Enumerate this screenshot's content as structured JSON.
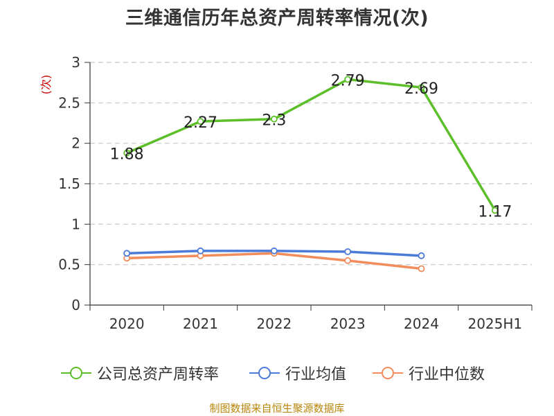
{
  "title": "三维通信历年总资产周转率情况(次)",
  "source": "制图数据来自恒生聚源数据库",
  "chart_data": {
    "type": "line",
    "title": "三维通信历年总资产周转率情况(次)",
    "ylabel": "(次)",
    "xlabel": "",
    "categories": [
      "2020",
      "2021",
      "2022",
      "2023",
      "2024",
      "2025H1"
    ],
    "ylim": [
      0,
      3
    ],
    "yticks": [
      "0",
      "0.5",
      "1",
      "1.5",
      "2",
      "2.5",
      "3"
    ],
    "grid": true,
    "legend_position": "bottom",
    "series": [
      {
        "name": "公司总资产周转率",
        "color": "#5cbf2a",
        "values": [
          1.88,
          2.27,
          2.3,
          2.79,
          2.69,
          1.17
        ],
        "labels": [
          "1.88",
          "2.27",
          "2.3",
          "2.79",
          "2.69",
          "1.17"
        ]
      },
      {
        "name": "行业均值",
        "color": "#4a7bd8",
        "values": [
          0.64,
          0.67,
          0.67,
          0.66,
          0.61,
          null
        ]
      },
      {
        "name": "行业中位数",
        "color": "#f28c5a",
        "values": [
          0.58,
          0.61,
          0.64,
          0.55,
          0.45,
          null
        ]
      }
    ]
  }
}
